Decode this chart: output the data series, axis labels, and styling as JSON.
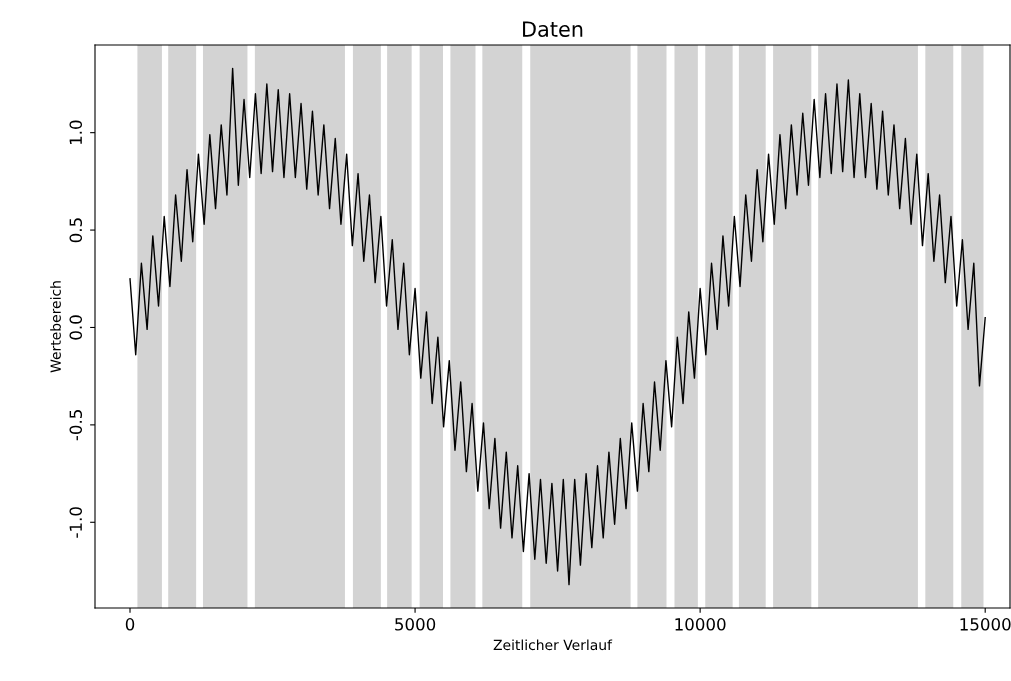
{
  "chart_data": {
    "type": "line",
    "title": "Daten",
    "xlabel": "Zeitlicher Verlauf",
    "ylabel": "Wertebereich",
    "x": [
      0,
      100,
      200,
      300,
      400,
      500,
      600,
      700,
      800,
      900,
      1000,
      1100,
      1200,
      1300,
      1400,
      1500,
      1600,
      1700,
      1800,
      1900,
      2000,
      2100,
      2200,
      2300,
      2400,
      2500,
      2600,
      2700,
      2800,
      2900,
      3000,
      3100,
      3200,
      3300,
      3400,
      3500,
      3600,
      3700,
      3800,
      3900,
      4000,
      4100,
      4200,
      4300,
      4400,
      4500,
      4600,
      4700,
      4800,
      4900,
      5000,
      5100,
      5200,
      5300,
      5400,
      5500,
      5600,
      5700,
      5800,
      5900,
      6000,
      6100,
      6200,
      6300,
      6400,
      6500,
      6600,
      6700,
      6800,
      6900,
      7000,
      7100,
      7200,
      7300,
      7400,
      7500,
      7600,
      7700,
      7800,
      7900,
      8000,
      8100,
      8200,
      8300,
      8400,
      8500,
      8600,
      8700,
      8800,
      8900,
      9000,
      9100,
      9200,
      9300,
      9400,
      9500,
      9600,
      9700,
      9800,
      9900,
      10000,
      10100,
      10200,
      10300,
      10400,
      10500,
      10600,
      10700,
      10800,
      10900,
      11000,
      11100,
      11200,
      11300,
      11400,
      11500,
      11600,
      11700,
      11800,
      11900,
      12000,
      12100,
      12200,
      12300,
      12400,
      12500,
      12600,
      12700,
      12800,
      12900,
      13000,
      13100,
      13200,
      13300,
      13400,
      13500,
      13600,
      13700,
      13800,
      13900,
      14000,
      14100,
      14200,
      14300,
      14400,
      14500,
      14600,
      14700,
      14800,
      14900,
      15000
    ],
    "series": [
      {
        "color": "#000000",
        "values": [
          0.25,
          -0.14,
          0.33,
          -0.01,
          0.47,
          0.11,
          0.57,
          0.21,
          0.68,
          0.34,
          0.81,
          0.44,
          0.89,
          0.53,
          0.99,
          0.61,
          1.04,
          0.68,
          1.33,
          0.73,
          1.17,
          0.77,
          1.2,
          0.79,
          1.25,
          0.8,
          1.22,
          0.77,
          1.2,
          0.77,
          1.15,
          0.71,
          1.11,
          0.68,
          1.04,
          0.61,
          0.97,
          0.53,
          0.89,
          0.42,
          0.79,
          0.34,
          0.68,
          0.23,
          0.57,
          0.11,
          0.45,
          -0.01,
          0.33,
          -0.14,
          0.2,
          -0.26,
          0.08,
          -0.39,
          -0.05,
          -0.51,
          -0.17,
          -0.63,
          -0.28,
          -0.74,
          -0.39,
          -0.84,
          -0.49,
          -0.93,
          -0.57,
          -1.03,
          -0.64,
          -1.08,
          -0.71,
          -1.15,
          -0.75,
          -1.19,
          -0.78,
          -1.21,
          -0.8,
          -1.25,
          -0.78,
          -1.32,
          -0.78,
          -1.22,
          -0.75,
          -1.13,
          -0.71,
          -1.08,
          -0.64,
          -1.01,
          -0.57,
          -0.93,
          -0.49,
          -0.84,
          -0.39,
          -0.74,
          -0.28,
          -0.63,
          -0.17,
          -0.51,
          -0.05,
          -0.39,
          0.08,
          -0.26,
          0.2,
          -0.14,
          0.33,
          -0.01,
          0.47,
          0.11,
          0.57,
          0.21,
          0.68,
          0.34,
          0.81,
          0.44,
          0.89,
          0.53,
          0.99,
          0.61,
          1.04,
          0.68,
          1.1,
          0.73,
          1.17,
          0.77,
          1.2,
          0.79,
          1.25,
          0.8,
          1.27,
          0.77,
          1.2,
          0.77,
          1.15,
          0.71,
          1.11,
          0.68,
          1.04,
          0.61,
          0.97,
          0.53,
          0.89,
          0.42,
          0.79,
          0.34,
          0.68,
          0.23,
          0.57,
          0.11,
          0.45,
          -0.01,
          0.33,
          -0.3,
          0.05
        ]
      }
    ],
    "bands": [
      {
        "axis": "x",
        "from": 130,
        "to": 560,
        "color": "#d3d3d3"
      },
      {
        "axis": "x",
        "from": 670,
        "to": 1160,
        "color": "#d3d3d3"
      },
      {
        "axis": "x",
        "from": 1280,
        "to": 2060,
        "color": "#d3d3d3"
      },
      {
        "axis": "x",
        "from": 2190,
        "to": 3770,
        "color": "#d3d3d3"
      },
      {
        "axis": "x",
        "from": 3910,
        "to": 4400,
        "color": "#d3d3d3"
      },
      {
        "axis": "x",
        "from": 4510,
        "to": 4940,
        "color": "#d3d3d3"
      },
      {
        "axis": "x",
        "from": 5080,
        "to": 5490,
        "color": "#d3d3d3"
      },
      {
        "axis": "x",
        "from": 5620,
        "to": 6060,
        "color": "#d3d3d3"
      },
      {
        "axis": "x",
        "from": 6180,
        "to": 6880,
        "color": "#d3d3d3"
      },
      {
        "axis": "x",
        "from": 7020,
        "to": 8780,
        "color": "#d3d3d3"
      },
      {
        "axis": "x",
        "from": 8900,
        "to": 9410,
        "color": "#d3d3d3"
      },
      {
        "axis": "x",
        "from": 9550,
        "to": 9960,
        "color": "#d3d3d3"
      },
      {
        "axis": "x",
        "from": 10090,
        "to": 10570,
        "color": "#d3d3d3"
      },
      {
        "axis": "x",
        "from": 10680,
        "to": 11150,
        "color": "#d3d3d3"
      },
      {
        "axis": "x",
        "from": 11280,
        "to": 11950,
        "color": "#d3d3d3"
      },
      {
        "axis": "x",
        "from": 12070,
        "to": 13820,
        "color": "#d3d3d3"
      },
      {
        "axis": "x",
        "from": 13950,
        "to": 14440,
        "color": "#d3d3d3"
      },
      {
        "axis": "x",
        "from": 14580,
        "to": 14970,
        "color": "#d3d3d3"
      }
    ],
    "xlim": [
      -614,
      15435
    ],
    "ylim": [
      -1.44,
      1.45
    ],
    "xticks": [
      0,
      5000,
      10000,
      15000
    ],
    "yticks": [
      {
        "value": -1,
        "label": "-1.0"
      },
      {
        "value": -0.5,
        "label": "-0.5"
      },
      {
        "value": 0,
        "label": "0.0"
      },
      {
        "value": 0.5,
        "label": "0.5"
      },
      {
        "value": 1,
        "label": "1.0"
      }
    ],
    "grid": false,
    "line_style": "solid",
    "marker": "none"
  }
}
